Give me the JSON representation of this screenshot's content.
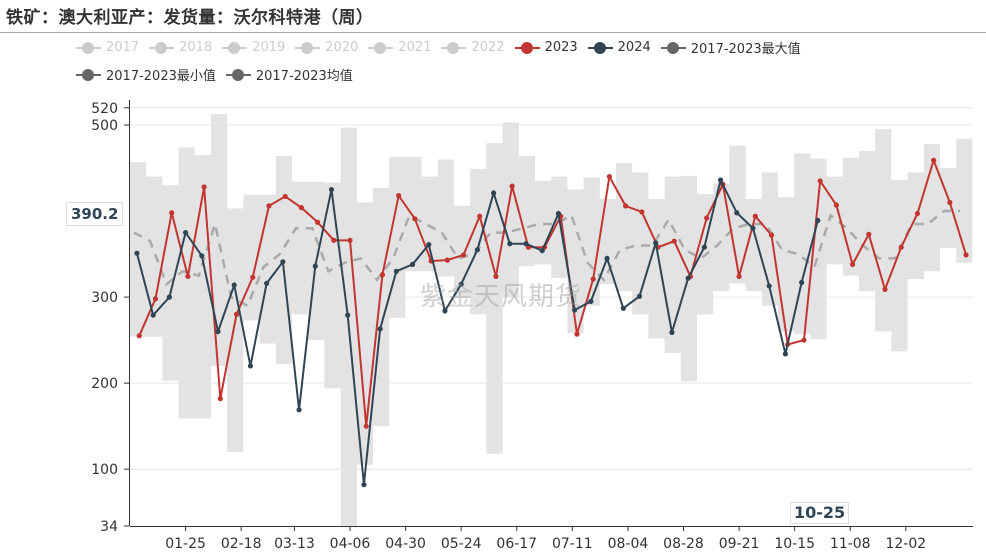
{
  "title": "铁矿：澳大利亚产：发货量：沃尔科特港（周）",
  "watermark": "紫金天风期货",
  "colors": {
    "y2023": "#c23531",
    "y2024": "#2f4554",
    "inactive": "#cccccc",
    "stat": "#666666",
    "band": "#e3e3e3",
    "mean": "#aaaaaa"
  },
  "legend": [
    {
      "label": "2017",
      "active": false
    },
    {
      "label": "2018",
      "active": false
    },
    {
      "label": "2019",
      "active": false
    },
    {
      "label": "2020",
      "active": false
    },
    {
      "label": "2021",
      "active": false
    },
    {
      "label": "2022",
      "active": false
    },
    {
      "label": "2023",
      "active": true,
      "color": "#c23531"
    },
    {
      "label": "2024",
      "active": true,
      "color": "#2f4554"
    },
    {
      "label": "2017-2023最大值",
      "active": true,
      "color": "#666666"
    },
    {
      "label": "2017-2023最小值",
      "active": true,
      "color": "#666666"
    },
    {
      "label": "2017-2023均值",
      "active": true,
      "color": "#666666"
    }
  ],
  "tooltip": {
    "y_value": "390.2",
    "x_value": "10-25"
  },
  "chart_data": {
    "type": "line",
    "title": "铁矿：澳大利亚产：发货量：沃尔科特港（周）",
    "ylim": [
      34,
      520
    ],
    "yticks": [
      "34",
      "100",
      "200",
      "300",
      "500",
      "520"
    ],
    "ytick_values": [
      34,
      100,
      200,
      300,
      500,
      520
    ],
    "xticks": [
      {
        "label": "01-25",
        "doy": 25
      },
      {
        "label": "02-18",
        "doy": 49
      },
      {
        "label": "03-13",
        "doy": 72
      },
      {
        "label": "04-06",
        "doy": 96
      },
      {
        "label": "04-30",
        "doy": 120
      },
      {
        "label": "05-24",
        "doy": 144
      },
      {
        "label": "06-17",
        "doy": 168
      },
      {
        "label": "07-11",
        "doy": 192
      },
      {
        "label": "08-04",
        "doy": 216
      },
      {
        "label": "08-28",
        "doy": 240
      },
      {
        "label": "09-21",
        "doy": 264
      },
      {
        "label": "10-15",
        "doy": 288
      },
      {
        "label": "11-08",
        "doy": 312
      },
      {
        "label": "12-02",
        "doy": 336
      }
    ],
    "grid": true,
    "legend_position": "top",
    "series": [
      {
        "name": "2023",
        "start_doy": 5,
        "values": [
          255,
          298,
          398,
          324,
          428,
          182,
          280,
          323,
          406,
          417,
          404,
          387,
          366,
          366,
          150,
          326,
          418,
          391,
          342,
          343,
          349,
          394,
          324,
          429,
          358,
          358,
          394,
          257,
          321,
          440,
          406,
          399,
          358,
          365,
          324,
          392,
          431,
          324,
          394,
          372,
          245,
          250,
          435,
          407,
          338,
          373,
          309,
          358,
          397,
          459,
          410,
          349
        ]
      },
      {
        "name": "2024",
        "start_doy": 4,
        "values": [
          351,
          279,
          300,
          375,
          348,
          260,
          314,
          220,
          316,
          341,
          169,
          336,
          425,
          279,
          82,
          263,
          330,
          338,
          361,
          284,
          315,
          355,
          421,
          362,
          362,
          354,
          397,
          285,
          295,
          345,
          287,
          301,
          363,
          259,
          322,
          358,
          436,
          398,
          380,
          313,
          234,
          317,
          389
        ]
      },
      {
        "name": "2017-2023最大值",
        "values": [
          457,
          440,
          430,
          474,
          465,
          513,
          403,
          419,
          419,
          464,
          434,
          434,
          433,
          497,
          410,
          427,
          463,
          463,
          440,
          460,
          406,
          449,
          479,
          503,
          464,
          435,
          440,
          425,
          439,
          414,
          456,
          445,
          414,
          440,
          441,
          420,
          432,
          476,
          414,
          445,
          416,
          467,
          461,
          440,
          462,
          470,
          495,
          436,
          445,
          478,
          450,
          484
        ]
      },
      {
        "name": "2017-2023最小值",
        "values": [
          254,
          254,
          203,
          159,
          159,
          220,
          120,
          273,
          246,
          222,
          280,
          250,
          194,
          34,
          105,
          150,
          276,
          330,
          330,
          324,
          300,
          280,
          118,
          300,
          336,
          338,
          322,
          258,
          290,
          315,
          307,
          280,
          252,
          235,
          202,
          280,
          307,
          316,
          307,
          290,
          260,
          257,
          251,
          338,
          325,
          307,
          260,
          237,
          321,
          330,
          357,
          340
        ]
      },
      {
        "name": "2017-2023均值",
        "values": [
          375,
          365,
          315,
          330,
          325,
          385,
          300,
          290,
          335,
          350,
          380,
          380,
          330,
          340,
          345,
          320,
          345,
          395,
          385,
          375,
          345,
          350,
          375,
          375,
          380,
          385,
          385,
          395,
          340,
          320,
          355,
          360,
          360,
          390,
          355,
          345,
          360,
          380,
          385,
          385,
          355,
          350,
          335,
          395,
          380,
          360,
          345,
          345,
          385,
          385,
          400,
          400
        ]
      }
    ]
  }
}
